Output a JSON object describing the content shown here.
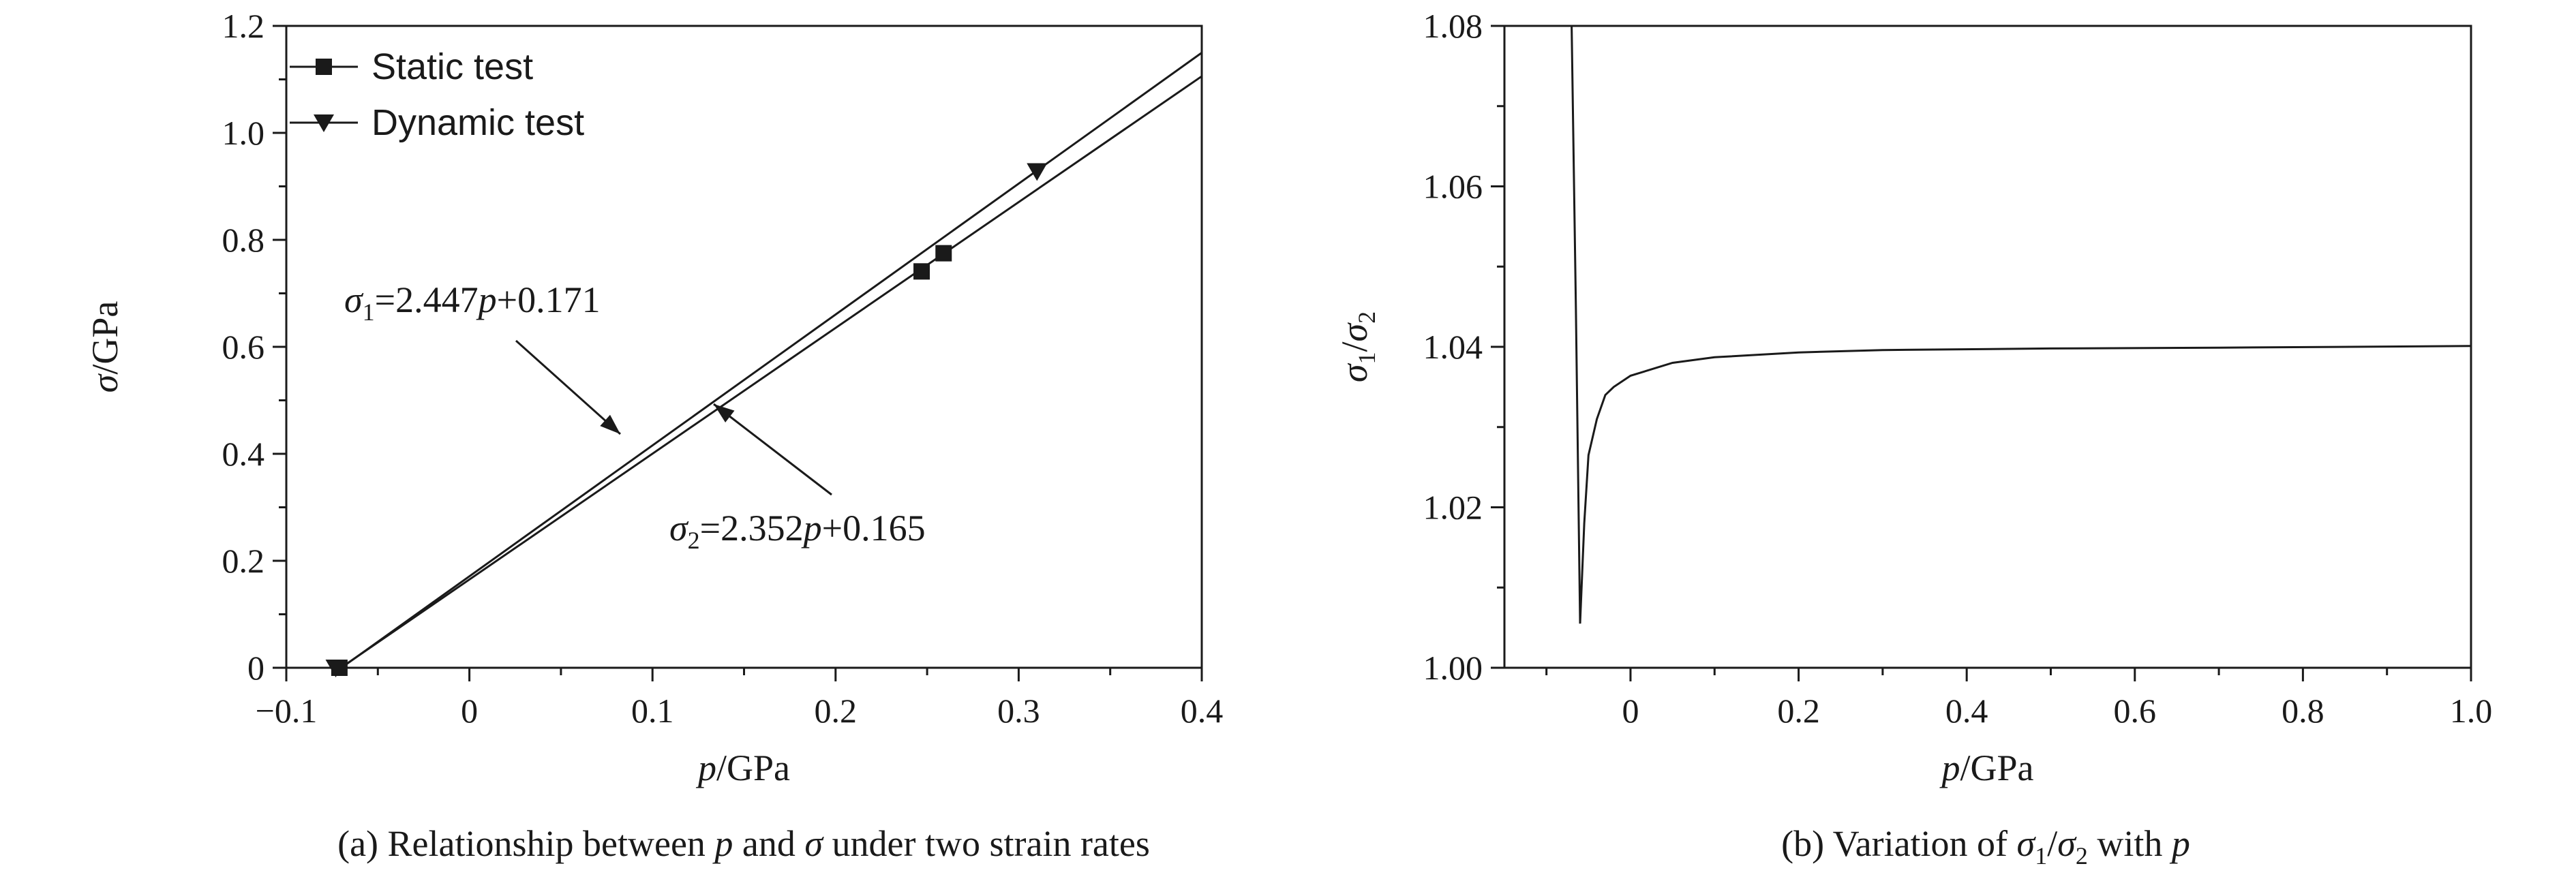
{
  "chart_data": [
    {
      "type": "scatter",
      "panel": "(a)",
      "caption_parts": [
        "(a) Relationship between ",
        "p",
        " and ",
        "σ",
        " under two strain rates"
      ],
      "xlabel_parts": [
        "p",
        "/GPa"
      ],
      "ylabel_parts": [
        "σ",
        "/GPa"
      ],
      "xlim": [
        -0.1,
        0.4
      ],
      "ylim": [
        0,
        1.2
      ],
      "xticks": [
        -0.1,
        0,
        0.1,
        0.2,
        0.3,
        0.4
      ],
      "xtick_labels": [
        "−0.1",
        "0",
        "0.1",
        "0.2",
        "0.3",
        "0.4"
      ],
      "yticks": [
        0,
        0.2,
        0.4,
        0.6,
        0.8,
        1.0,
        1.2
      ],
      "ytick_labels": [
        "0",
        "0.2",
        "0.4",
        "0.6",
        "0.8",
        "1.0",
        "1.2"
      ],
      "legend_position": "top-left",
      "series": [
        {
          "name": "Static test",
          "marker": "square",
          "points": [
            [
              -0.071,
              0
            ],
            [
              0.247,
              0.741
            ],
            [
              0.259,
              0.775
            ]
          ]
        },
        {
          "name": "Dynamic test",
          "marker": "triangle-down",
          "points": [
            [
              -0.073,
              0
            ],
            [
              0.31,
              0.928
            ]
          ]
        }
      ],
      "fits": [
        {
          "label_parts": [
            "σ",
            "1",
            "=2.447",
            "p",
            "+0.171"
          ],
          "slope": 2.447,
          "intercept": 0.171,
          "x_range": [
            -0.07,
            0.4
          ]
        },
        {
          "label_parts": [
            "σ",
            "2",
            "=2.352",
            "p",
            "+0.165"
          ],
          "slope": 2.352,
          "intercept": 0.165,
          "x_range": [
            -0.07,
            0.4
          ]
        }
      ]
    },
    {
      "type": "line",
      "panel": "(b)",
      "caption_parts": [
        "(b) Variation of ",
        "σ",
        "1",
        "/",
        "σ",
        "2",
        " with ",
        "p"
      ],
      "xlabel_parts": [
        "p",
        "/GPa"
      ],
      "ylabel_parts": [
        "σ",
        "1",
        "/",
        "σ",
        "2"
      ],
      "xlim": [
        -0.15,
        1.0
      ],
      "ylim": [
        1.0,
        1.08
      ],
      "xticks": [
        0,
        0.2,
        0.4,
        0.6,
        0.8,
        1.0
      ],
      "xtick_labels": [
        "0",
        "0.2",
        "0.4",
        "0.6",
        "0.8",
        "1.0"
      ],
      "yticks": [
        1.0,
        1.02,
        1.04,
        1.06,
        1.08
      ],
      "ytick_labels": [
        "1.00",
        "1.02",
        "1.04",
        "1.06",
        "1.08"
      ],
      "series": [
        {
          "x": [
            -0.07,
            -0.065,
            -0.06,
            -0.055,
            -0.05,
            -0.04,
            -0.03,
            -0.02,
            0.0,
            0.05,
            0.1,
            0.2,
            0.3,
            0.5,
            0.7,
            1.0
          ],
          "y": [
            1.08,
            1.045,
            1.0055,
            1.018,
            1.0265,
            1.031,
            1.034,
            1.035,
            1.0364,
            1.038,
            1.0387,
            1.0393,
            1.0396,
            1.0398,
            1.0399,
            1.0401
          ]
        }
      ]
    }
  ]
}
